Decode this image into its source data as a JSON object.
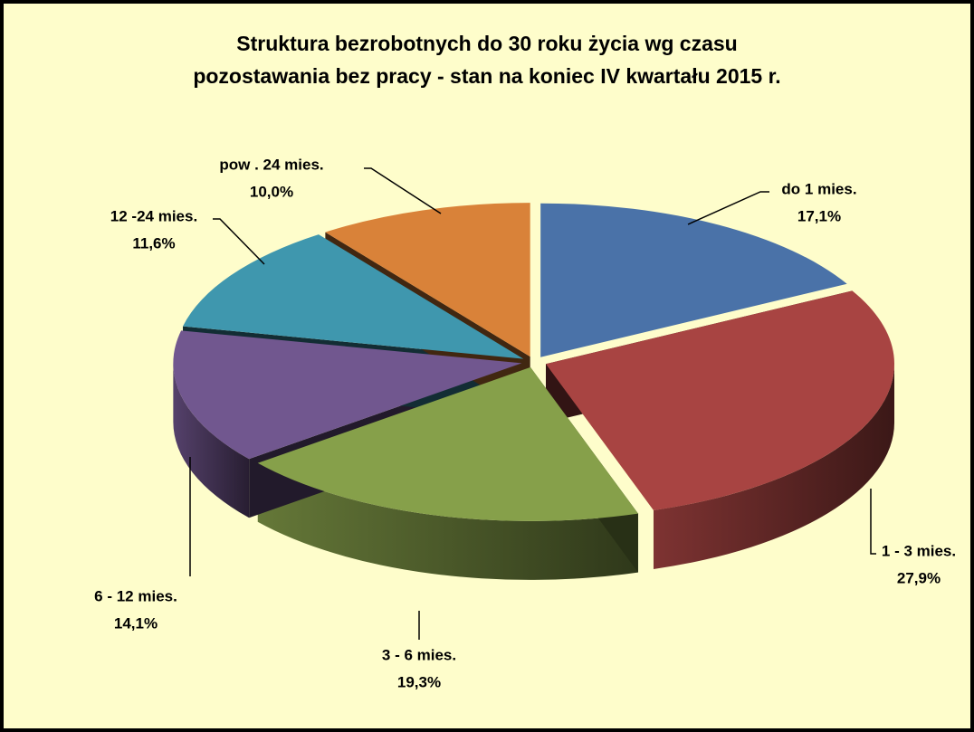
{
  "chart_data": {
    "type": "pie",
    "title": [
      "Struktura bezrobotnych do 30 roku życia wg czasu",
      "pozostawania bez pracy - stan na koniec IV kwartału 2015 r."
    ],
    "categories": [
      "do 1 mies.",
      "1 - 3 mies.",
      "3 - 6 mies.",
      "6 - 12 mies.",
      "12 -24 mies.",
      "pow . 24 mies."
    ],
    "values": [
      17.1,
      27.9,
      19.3,
      14.1,
      11.6,
      10.0
    ],
    "value_labels": [
      "17,1%",
      "27,9%",
      "19,3%",
      "14,1%",
      "11,6%",
      "10,0%"
    ],
    "colors": [
      "#4a72a8",
      "#a84442",
      "#86a04a",
      "#71578f",
      "#3f97ae",
      "#d98239"
    ]
  }
}
